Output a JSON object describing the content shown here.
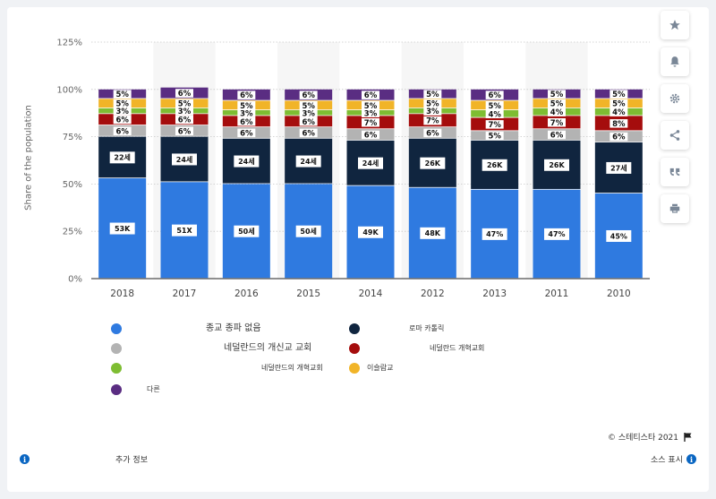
{
  "chart_data": {
    "type": "bar",
    "stacked": true,
    "ylabel": "Share of the population",
    "ylim": [
      0,
      125
    ],
    "yticks": [
      "0%",
      "25%",
      "50%",
      "75%",
      "100%",
      "125%"
    ],
    "categories": [
      "2018",
      "2017",
      "2016",
      "2015",
      "2014",
      "2012",
      "2013",
      "2011",
      "2010"
    ],
    "series": [
      {
        "name": "종교 종파 없음",
        "color": "#2f7ae0",
        "values": [
          53,
          51,
          50,
          50,
          49,
          48,
          47,
          47,
          45
        ],
        "labels": [
          "53K",
          "51X",
          "50세",
          "50세",
          "49K",
          "48K",
          "47%",
          "47%",
          "45%"
        ]
      },
      {
        "name": "로마 카톨릭",
        "color": "#10253f",
        "values": [
          22,
          24,
          24,
          24,
          24,
          26,
          26,
          26,
          27
        ],
        "labels": [
          "22세",
          "24세",
          "24세",
          "24세",
          "24세",
          "26K",
          "26K",
          "26K",
          "27세"
        ]
      },
      {
        "name": "네덜란드의 개신교 교회",
        "color": "#b3b3b3",
        "values": [
          6,
          6,
          6,
          6,
          6,
          6,
          5,
          6,
          6
        ],
        "labels": [
          "6%",
          "6%",
          "6%",
          "6%",
          "6%",
          "6%",
          "5%",
          "6%",
          "6%"
        ]
      },
      {
        "name": "네덜란드 개혁교회",
        "color": "#a50d0d",
        "values": [
          6,
          6,
          6,
          6,
          7,
          7,
          7,
          7,
          8
        ],
        "labels": [
          "6%",
          "6%",
          "6%",
          "6%",
          "7%",
          "7%",
          "7%",
          "7%",
          "8%"
        ]
      },
      {
        "name": "네덜란드의 개혁교회",
        "color": "#7ebd32",
        "values": [
          3,
          3,
          3,
          3,
          3,
          3,
          4,
          4,
          4
        ],
        "labels": [
          "3%",
          "3%",
          "3%",
          "3%",
          "3%",
          "3%",
          "4%",
          "4%",
          "4%"
        ]
      },
      {
        "name": "이슬람교",
        "color": "#f1b428",
        "values": [
          5,
          5,
          5,
          5,
          5,
          5,
          5,
          5,
          5
        ],
        "labels": [
          "5%",
          "5%",
          "5%",
          "5%",
          "5%",
          "5%",
          "5%",
          "5%",
          "5%"
        ]
      },
      {
        "name": "다른",
        "color": "#5a2d82",
        "values": [
          5,
          6,
          6,
          6,
          6,
          5,
          6,
          5,
          5
        ],
        "labels": [
          "5%",
          "6%",
          "6%",
          "6%",
          "6%",
          "5%",
          "6%",
          "5%",
          "5%"
        ]
      }
    ],
    "grid": true,
    "legend_position": "bottom"
  },
  "toolbar": {
    "icons": [
      "star-icon",
      "bell-icon",
      "gear-icon",
      "share-icon",
      "quote-icon",
      "print-icon"
    ]
  },
  "footer": {
    "copyright": "© 스테티스타 2021",
    "more_info": "추가 정보",
    "source": "소스 표시"
  }
}
